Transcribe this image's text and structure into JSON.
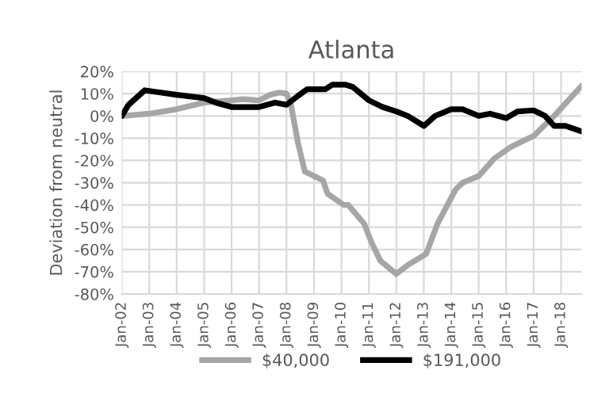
{
  "chart_data": {
    "type": "line",
    "title": "Atlanta",
    "ylabel": "Deviation from neutral",
    "xlim": [
      "2002-01",
      "2018-10"
    ],
    "xticks": [
      {
        "value": "2002-01",
        "label": "Jan-02"
      },
      {
        "value": "2003-01",
        "label": "Jan-03"
      },
      {
        "value": "2004-01",
        "label": "Jan-04"
      },
      {
        "value": "2005-01",
        "label": "Jan-05"
      },
      {
        "value": "2006-01",
        "label": "Jan-06"
      },
      {
        "value": "2007-01",
        "label": "Jan-07"
      },
      {
        "value": "2008-01",
        "label": "Jan-08"
      },
      {
        "value": "2009-01",
        "label": "Jan-09"
      },
      {
        "value": "2010-01",
        "label": "Jan-10"
      },
      {
        "value": "2011-01",
        "label": "Jan-11"
      },
      {
        "value": "2012-01",
        "label": "Jan-12"
      },
      {
        "value": "2013-01",
        "label": "Jan-13"
      },
      {
        "value": "2014-01",
        "label": "Jan-14"
      },
      {
        "value": "2015-01",
        "label": "Jan-15"
      },
      {
        "value": "2016-01",
        "label": "Jan-16"
      },
      {
        "value": "2017-01",
        "label": "Jan-17"
      },
      {
        "value": "2018-01",
        "label": "Jan-18"
      }
    ],
    "ylim": [
      -80,
      20
    ],
    "yticks": [
      {
        "value": -80,
        "label": "-80%"
      },
      {
        "value": -70,
        "label": "-70%"
      },
      {
        "value": -60,
        "label": "-60%"
      },
      {
        "value": -50,
        "label": "-50%"
      },
      {
        "value": -40,
        "label": "-40%"
      },
      {
        "value": -30,
        "label": "-30%"
      },
      {
        "value": -20,
        "label": "-20%"
      },
      {
        "value": -10,
        "label": "-10%"
      },
      {
        "value": 0,
        "label": "0%"
      },
      {
        "value": 10,
        "label": "10%"
      },
      {
        "value": 20,
        "label": "20%"
      }
    ],
    "grid": true,
    "legend": "bottom",
    "marker": "none",
    "line_style": "solid",
    "series": [
      {
        "name": "$40,000",
        "color": "#a6a6a6",
        "x": [
          "2002-01",
          "2003-01",
          "2004-01",
          "2005-01",
          "2006-01",
          "2006-06",
          "2007-01",
          "2007-06",
          "2007-10",
          "2008-01",
          "2008-03",
          "2008-06",
          "2008-09",
          "2009-05",
          "2009-07",
          "2010-02",
          "2010-04",
          "2010-11",
          "2011-02",
          "2011-06",
          "2012-01",
          "2012-06",
          "2013-02",
          "2013-07",
          "2014-03",
          "2014-06",
          "2015-01",
          "2015-08",
          "2016-03",
          "2017-01",
          "2017-10",
          "2018-10"
        ],
        "values": [
          0,
          1,
          3,
          6,
          7,
          7.5,
          7,
          9.5,
          10.5,
          10,
          5,
          -12,
          -25,
          -29,
          -35,
          -40,
          -40,
          -48.5,
          -56.5,
          -65,
          -71,
          -67,
          -62,
          -48.5,
          -33,
          -30,
          -27,
          -19,
          -14,
          -9,
          0,
          13.5
        ]
      },
      {
        "name": "$191,000",
        "color": "#000000",
        "x": [
          "2002-01",
          "2002-04",
          "2002-11",
          "2003-06",
          "2004-01",
          "2005-01",
          "2005-06",
          "2006-01",
          "2007-01",
          "2007-08",
          "2008-01",
          "2008-06",
          "2008-10",
          "2009-06",
          "2009-09",
          "2010-03",
          "2010-06",
          "2011-01",
          "2011-07",
          "2012-01",
          "2012-06",
          "2013-01",
          "2013-06",
          "2014-01",
          "2014-06",
          "2015-01",
          "2015-06",
          "2016-01",
          "2016-06",
          "2017-01",
          "2017-06",
          "2017-10",
          "2018-03",
          "2018-10"
        ],
        "values": [
          0,
          5,
          11.5,
          10.5,
          9.5,
          8,
          6,
          4,
          4,
          6,
          5,
          9,
          12,
          12,
          14,
          14,
          13,
          7,
          4,
          2,
          0,
          -4.5,
          0,
          3,
          3,
          0,
          1,
          -1,
          2,
          2.5,
          0,
          -4.5,
          -4.5,
          -7
        ]
      }
    ]
  }
}
